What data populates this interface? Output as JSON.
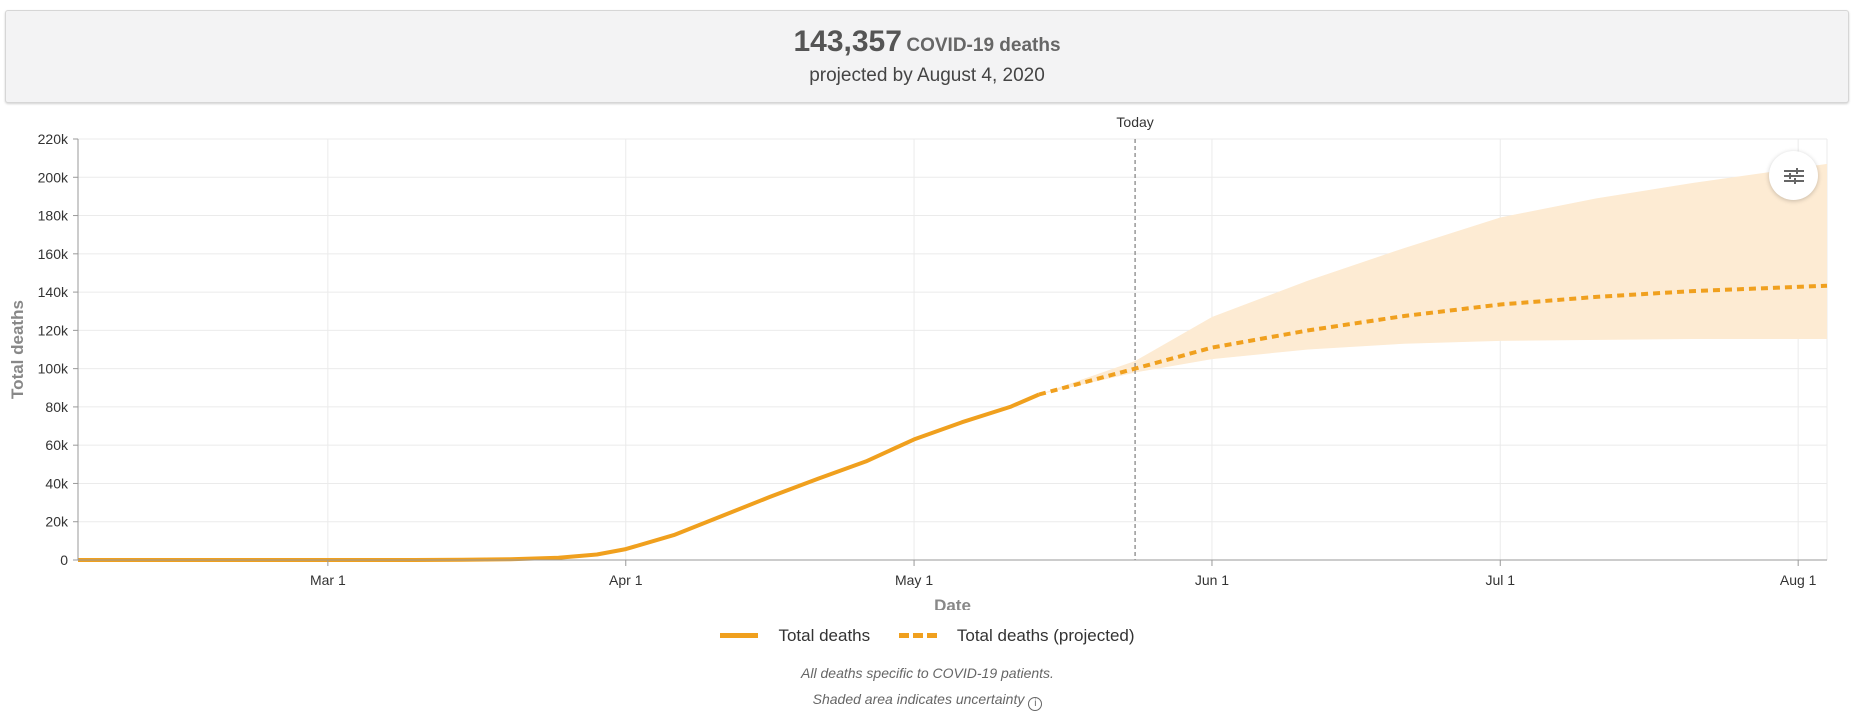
{
  "summary": {
    "number": "143,357",
    "label": "COVID-19 deaths",
    "subtitle": "projected by August 4, 2020"
  },
  "legend": {
    "actual": "Total deaths",
    "projected": "Total deaths (projected)"
  },
  "footnotes": {
    "line1": "All deaths specific to COVID-19 patients.",
    "line2": "Shaded area indicates uncertainty"
  },
  "icons": {
    "filter": "sliders-icon",
    "info": "info-circle-icon"
  },
  "colors": {
    "line": "#f0a01e",
    "band": "#fdebd3",
    "today_line": "#888888"
  },
  "chart_data": {
    "type": "line",
    "xlabel": "Date",
    "ylabel": "Total deaths",
    "x_tick_labels": [
      {
        "date": "2020-03-01",
        "label": "Mar 1"
      },
      {
        "date": "2020-04-01",
        "label": "Apr 1"
      },
      {
        "date": "2020-05-01",
        "label": "May 1"
      },
      {
        "date": "2020-06-01",
        "label": "Jun 1"
      },
      {
        "date": "2020-07-01",
        "label": "Jul 1"
      },
      {
        "date": "2020-08-01",
        "label": "Aug 1"
      }
    ],
    "xlim": [
      "2020-02-04",
      "2020-08-04"
    ],
    "y_ticks": [
      0,
      20000,
      40000,
      60000,
      80000,
      100000,
      120000,
      140000,
      160000,
      180000,
      200000,
      220000
    ],
    "y_tick_labels": [
      "0",
      "20k",
      "40k",
      "60k",
      "80k",
      "100k",
      "120k",
      "140k",
      "160k",
      "180k",
      "200k",
      "220k"
    ],
    "ylim": [
      0,
      220000
    ],
    "grid": true,
    "today": {
      "date": "2020-05-24",
      "label": "Today"
    },
    "series": [
      {
        "name": "Total deaths",
        "style": "solid",
        "points": [
          [
            "2020-02-04",
            0
          ],
          [
            "2020-03-01",
            0
          ],
          [
            "2020-03-10",
            0
          ],
          [
            "2020-03-15",
            100
          ],
          [
            "2020-03-20",
            400
          ],
          [
            "2020-03-25",
            1200
          ],
          [
            "2020-03-29",
            2900
          ],
          [
            "2020-04-01",
            5700
          ],
          [
            "2020-04-06",
            13000
          ],
          [
            "2020-04-11",
            23000
          ],
          [
            "2020-04-16",
            33000
          ],
          [
            "2020-04-21",
            42500
          ],
          [
            "2020-04-26",
            51500
          ],
          [
            "2020-05-01",
            63000
          ],
          [
            "2020-05-06",
            72000
          ],
          [
            "2020-05-11",
            80000
          ],
          [
            "2020-05-14",
            86500
          ]
        ]
      },
      {
        "name": "Total deaths (projected)",
        "style": "dashed",
        "points": [
          [
            "2020-05-14",
            86500
          ],
          [
            "2020-05-24",
            100000
          ],
          [
            "2020-06-01",
            111000
          ],
          [
            "2020-06-11",
            120000
          ],
          [
            "2020-06-21",
            127500
          ],
          [
            "2020-07-01",
            133500
          ],
          [
            "2020-07-11",
            137500
          ],
          [
            "2020-07-21",
            140500
          ],
          [
            "2020-08-04",
            143357
          ]
        ]
      }
    ],
    "uncertainty_band": {
      "upper": [
        [
          "2020-05-14",
          86500
        ],
        [
          "2020-05-24",
          104000
        ],
        [
          "2020-06-01",
          127000
        ],
        [
          "2020-06-11",
          146000
        ],
        [
          "2020-06-21",
          163000
        ],
        [
          "2020-07-01",
          179000
        ],
        [
          "2020-07-11",
          189000
        ],
        [
          "2020-07-21",
          197000
        ],
        [
          "2020-08-04",
          207000
        ]
      ],
      "lower": [
        [
          "2020-05-14",
          86500
        ],
        [
          "2020-05-24",
          98000
        ],
        [
          "2020-06-01",
          105000
        ],
        [
          "2020-06-11",
          110000
        ],
        [
          "2020-06-21",
          113000
        ],
        [
          "2020-07-01",
          114500
        ],
        [
          "2020-07-21",
          115500
        ],
        [
          "2020-08-04",
          115500
        ]
      ]
    }
  }
}
